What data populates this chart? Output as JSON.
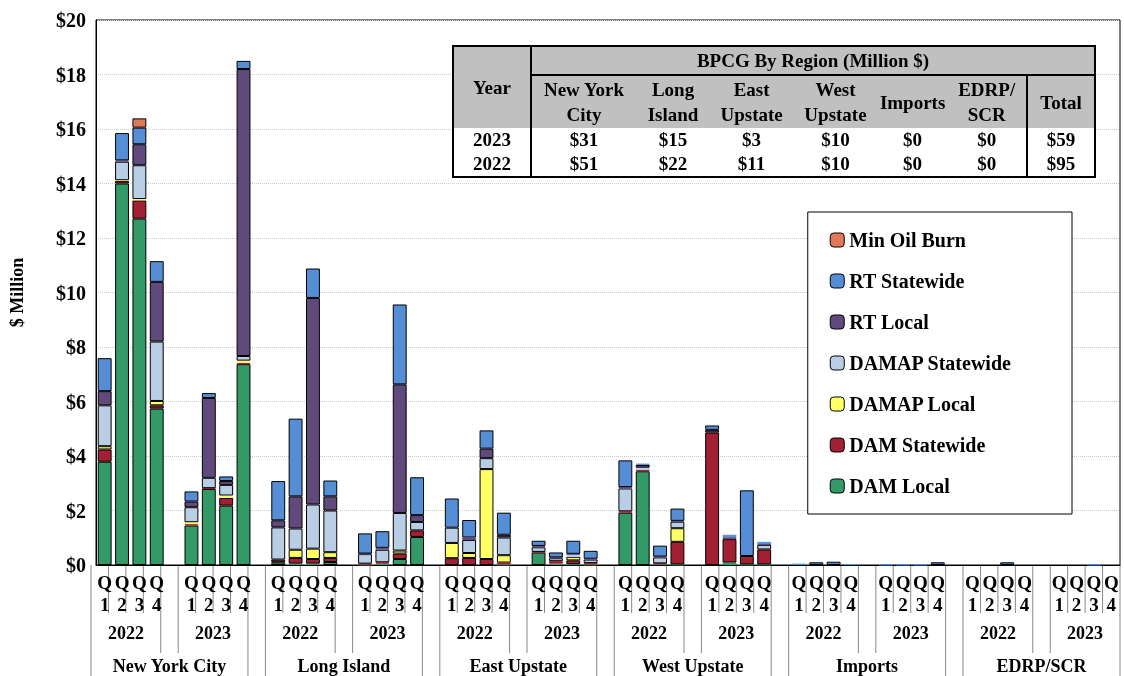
{
  "chart_data": [
    {
      "type": "bar",
      "stacked": true,
      "ylabel": "$ Million",
      "categories": [
        "Q1",
        "Q2",
        "Q3",
        "Q4",
        null,
        "Q1",
        "Q2",
        "Q3",
        "Q4",
        null,
        "Q1",
        "Q2",
        "Q3",
        "Q4",
        null,
        "Q1",
        "Q2",
        "Q3",
        "Q4",
        null,
        "Q1",
        "Q2",
        "Q3",
        "Q4",
        null,
        "Q1",
        "Q2",
        "Q3",
        "Q4",
        null,
        "Q1",
        "Q2",
        "Q3",
        "Q4",
        null,
        "Q1",
        "Q2",
        "Q3",
        "Q4",
        null,
        "Q1",
        "Q2",
        "Q3",
        "Q4",
        null,
        "Q1",
        "Q2",
        "Q3",
        "Q4",
        null,
        "Q1",
        "Q2",
        "Q3",
        "Q4",
        null,
        "Q1",
        "Q2",
        "Q3",
        "Q4"
      ],
      "series": [
        {
          "name": "DAM Local",
          "color": "#339966",
          "values": [
            3.79,
            14.0,
            12.71,
            5.74,
            null,
            1.45,
            2.79,
            2.18,
            7.37,
            null,
            0.1,
            0.05,
            0.05,
            0.11,
            null,
            0.02,
            0.05,
            0.22,
            1.03,
            null,
            0,
            0,
            0,
            0.02,
            null,
            0.46,
            0.05,
            0.03,
            0.02,
            null,
            1.92,
            3.44,
            0.03,
            0.02,
            null,
            null,
            0.09,
            0.02,
            0.02,
            null,
            0,
            0,
            0,
            0,
            null,
            0,
            0,
            0,
            0,
            null,
            0,
            0,
            0,
            0,
            null,
            0,
            0,
            0,
            0
          ]
        },
        {
          "name": "DAM Statewide",
          "color": "#a31f34",
          "values": [
            0.45,
            0.1,
            0.67,
            0.12,
            null,
            0.05,
            0.03,
            0.28,
            0.05,
            null,
            0.1,
            0.21,
            0.17,
            0.15,
            null,
            0.03,
            0.05,
            0.2,
            0.24,
            null,
            0.25,
            0.26,
            0.22,
            0.07,
            null,
            0.02,
            0.09,
            0.14,
            0.05,
            null,
            0.05,
            0.05,
            0.03,
            0.83,
            null,
            4.86,
            0.86,
            0.31,
            0.55,
            null,
            0,
            0,
            0,
            0,
            null,
            0,
            0,
            0,
            0,
            null,
            0,
            0,
            0,
            0,
            null,
            0,
            0,
            0,
            0
          ]
        },
        {
          "name": "DAMAP Local",
          "color": "#ffff66",
          "values": [
            0.12,
            0.02,
            0.05,
            0.16,
            null,
            0.07,
            0,
            0.09,
            0.08,
            null,
            0,
            0.3,
            0.38,
            0.21,
            null,
            0,
            0,
            0.11,
            0,
            null,
            0.56,
            0.18,
            3.3,
            0.27,
            null,
            0,
            0,
            0.13,
            0,
            null,
            0,
            0,
            0,
            0.5,
            null,
            0,
            0,
            0,
            0,
            null,
            0,
            0,
            0,
            0,
            null,
            0,
            0,
            0,
            0,
            null,
            0,
            0,
            0,
            0,
            null,
            0,
            0,
            0,
            0
          ]
        },
        {
          "name": "DAMAP Statewide",
          "color": "#b9cde5",
          "values": [
            1.5,
            0.68,
            1.24,
            2.18,
            null,
            0.55,
            0.38,
            0.39,
            0.17,
            null,
            1.18,
            0.78,
            1.62,
            1.53,
            null,
            0.35,
            0.46,
            1.38,
            0.31,
            null,
            0.56,
            0.48,
            0.4,
            0.65,
            null,
            0.17,
            0.11,
            0.09,
            0.13,
            null,
            0.84,
            0.08,
            0.22,
            0.24,
            null,
            0,
            0,
            0,
            0.17,
            null,
            0,
            0,
            0,
            0,
            null,
            0,
            0,
            0,
            0,
            null,
            0,
            0,
            0,
            0,
            null,
            0,
            0,
            0,
            0
          ]
        },
        {
          "name": "RT Local",
          "color": "#604a7b",
          "values": [
            0.52,
            0.05,
            0.77,
            2.19,
            null,
            0.21,
            2.93,
            0.14,
            10.53,
            null,
            0.26,
            1.18,
            7.58,
            0.52,
            null,
            0.02,
            0.07,
            4.72,
            0.25,
            null,
            0,
            0.09,
            0.35,
            0.1,
            null,
            0.05,
            0.03,
            0.02,
            0.03,
            null,
            0.05,
            0.1,
            0.03,
            0.03,
            null,
            0.1,
            0.07,
            null,
            0.03,
            null,
            0,
            0,
            0,
            0,
            null,
            0,
            0,
            0,
            0,
            null,
            0,
            0,
            0,
            0,
            null,
            0,
            0,
            0,
            0
          ]
        },
        {
          "name": "RT Statewide",
          "color": "#558ed5",
          "values": [
            1.21,
            1.0,
            0.61,
            0.76,
            null,
            0.37,
            0.18,
            0.17,
            0.3,
            null,
            1.44,
            2.85,
            1.08,
            0.58,
            null,
            0.74,
            0.61,
            2.93,
            1.39,
            null,
            1.07,
            0.64,
            0.67,
            0.81,
            null,
            0.19,
            0.18,
            0.48,
            0.29,
            null,
            0.98,
            0.05,
            0.4,
            0.45,
            null,
            0.16,
            0.09,
            2.41,
            0.08,
            null,
            0.05,
            0.1,
            0.12,
            0.03,
            null,
            0.02,
            0.02,
            0.02,
            0.1,
            null,
            0,
            0,
            0.1,
            0,
            null,
            0,
            0,
            0.02,
            0
          ]
        },
        {
          "name": "Min Oil Burn",
          "color": "#e0795a",
          "values": [
            0,
            0,
            0.34,
            0,
            null,
            0,
            0,
            0,
            0,
            null,
            0,
            0,
            0,
            0,
            null,
            0,
            0,
            0,
            0,
            null,
            0,
            0,
            0,
            0,
            null,
            0,
            0,
            0,
            0,
            null,
            0,
            0,
            0,
            0,
            null,
            0,
            0,
            0,
            0,
            null,
            0,
            0,
            0,
            0,
            null,
            0,
            0,
            0,
            0,
            null,
            0,
            0,
            0,
            0,
            null,
            0,
            0,
            0,
            0
          ]
        }
      ],
      "ylim": [
        0,
        20
      ],
      "yticks": [
        {
          "value": 0,
          "label": "$0"
        },
        {
          "value": 2,
          "label": "$2"
        },
        {
          "value": 4,
          "label": "$4"
        },
        {
          "value": 6,
          "label": "$6"
        },
        {
          "value": 8,
          "label": "$8"
        },
        {
          "value": 10,
          "label": "$10"
        },
        {
          "value": 12,
          "label": "$12"
        },
        {
          "value": 14,
          "label": "$14"
        },
        {
          "value": 16,
          "label": "$16"
        },
        {
          "value": 18,
          "label": "$18"
        },
        {
          "value": 20,
          "label": "$20"
        }
      ],
      "grid": "y",
      "legend": "right",
      "annotations": [
        "2022",
        "2023",
        "2022",
        "2023",
        "2022",
        "2023",
        "2022",
        "2023",
        "2022",
        "2023",
        "2022",
        "2023",
        "New York City",
        "Long Island",
        "East Upstate",
        "West Upstate",
        "Imports",
        "EDRP/SCR"
      ]
    },
    {
      "type": "heatmap",
      "title": "BPCG By Region (Million $)",
      "ylabel": "Year",
      "categories": [
        "New York City",
        "Long Island",
        "East Upstate",
        "West Upstate",
        "Imports",
        "EDRP/ SCR",
        "Total"
      ],
      "y_categories": [
        "2023",
        "2022"
      ],
      "cells": [
        [
          31,
          15,
          3,
          10,
          0,
          0,
          59
        ],
        [
          51,
          22,
          11,
          10,
          0,
          0,
          95
        ]
      ],
      "cell_labels": [
        [
          "$31",
          "$15",
          "$3",
          "$10",
          "$0",
          "$0",
          "$59"
        ],
        [
          "$51",
          "$22",
          "$11",
          "$10",
          "$0",
          "$0",
          "$95"
        ]
      ]
    }
  ]
}
